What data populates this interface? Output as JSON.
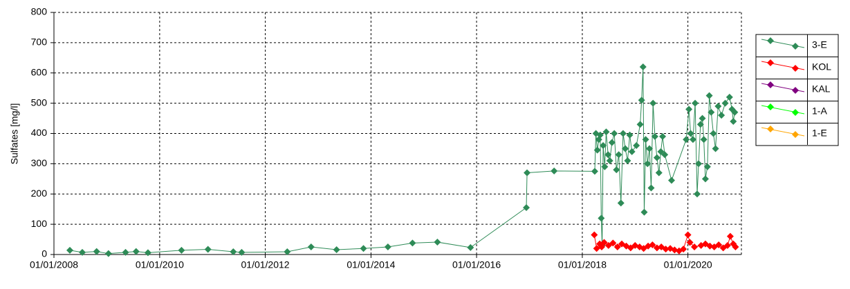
{
  "chart_data": {
    "type": "line",
    "ylabel": "Sulfates [mg/l]",
    "xlim": [
      "2008-01-01",
      "2021-01-05"
    ],
    "xticks": [
      {
        "value": "2008-01-01",
        "label": "01/01/2008"
      },
      {
        "value": "2010-01-01",
        "label": "01/01/2010"
      },
      {
        "value": "2012-01-01",
        "label": "01/01/2012"
      },
      {
        "value": "2014-01-01",
        "label": "01/01/2014"
      },
      {
        "value": "2016-01-01",
        "label": "01/01/2016"
      },
      {
        "value": "2018-01-01",
        "label": "01/01/2018"
      },
      {
        "value": "2020-01-01",
        "label": "01/01/2020"
      }
    ],
    "ylim": [
      0,
      800
    ],
    "yticks": [
      0,
      100,
      200,
      300,
      400,
      500,
      600,
      700,
      800
    ],
    "grid": true,
    "legend": "right",
    "series": [
      {
        "name": "3-E",
        "color": "#2e8b57",
        "x": [
          "2008-04-20",
          "2008-07-15",
          "2008-10-22",
          "2009-01-12",
          "2009-05-10",
          "2009-07-22",
          "2009-10-12",
          "2010-06-01",
          "2010-12-01",
          "2011-05-25",
          "2011-07-22",
          "2012-06-01",
          "2012-11-13",
          "2013-05-08",
          "2013-11-10",
          "2014-04-28",
          "2014-10-15",
          "2015-04-05",
          "2015-11-20",
          "2016-12-10",
          "2016-12-15",
          "2017-06-20",
          "2018-03-28",
          "2018-04-05",
          "2018-04-15",
          "2018-04-25",
          "2018-05-05",
          "2018-05-12",
          "2018-05-18",
          "2018-05-25",
          "2018-06-05",
          "2018-06-15",
          "2018-06-28",
          "2018-07-10",
          "2018-07-25",
          "2018-08-10",
          "2018-08-25",
          "2018-09-10",
          "2018-09-25",
          "2018-10-10",
          "2018-10-25",
          "2018-11-10",
          "2018-11-25",
          "2018-12-10",
          "2019-01-10",
          "2019-02-05",
          "2019-02-15",
          "2019-02-25",
          "2019-03-05",
          "2019-03-15",
          "2019-03-28",
          "2019-04-10",
          "2019-04-22",
          "2019-05-05",
          "2019-05-18",
          "2019-06-01",
          "2019-06-15",
          "2019-06-28",
          "2019-07-10",
          "2019-07-25",
          "2019-09-10",
          "2019-12-20",
          "2020-01-08",
          "2020-01-20",
          "2020-02-05",
          "2020-02-20",
          "2020-03-05",
          "2020-03-15",
          "2020-03-28",
          "2020-04-10",
          "2020-04-20",
          "2020-05-01",
          "2020-05-15",
          "2020-05-28",
          "2020-06-10",
          "2020-06-25",
          "2020-07-10",
          "2020-07-28",
          "2020-08-20",
          "2020-09-15",
          "2020-10-15",
          "2020-11-01",
          "2020-11-10",
          "2020-11-20"
        ],
        "values": [
          14,
          7,
          10,
          3,
          7,
          10,
          6,
          14,
          17,
          9,
          7,
          9,
          25,
          16,
          20,
          25,
          38,
          41,
          23,
          155,
          270,
          276,
          275,
          400,
          345,
          380,
          395,
          120,
          30,
          360,
          290,
          405,
          330,
          310,
          370,
          400,
          280,
          330,
          170,
          400,
          350,
          310,
          395,
          340,
          360,
          430,
          510,
          620,
          140,
          380,
          300,
          350,
          220,
          500,
          390,
          320,
          270,
          340,
          390,
          330,
          245,
          380,
          480,
          400,
          380,
          500,
          200,
          300,
          430,
          450,
          380,
          250,
          290,
          525,
          470,
          400,
          350,
          490,
          460,
          500,
          520,
          480,
          440,
          470
        ]
      },
      {
        "name": "KOL",
        "color": "#ff0000",
        "x": [
          "2018-03-25",
          "2018-04-10",
          "2018-05-01",
          "2018-05-15",
          "2018-06-01",
          "2018-07-01",
          "2018-08-01",
          "2018-09-01",
          "2018-10-01",
          "2018-11-01",
          "2018-12-01",
          "2019-01-01",
          "2019-02-01",
          "2019-03-01",
          "2019-04-01",
          "2019-05-01",
          "2019-06-01",
          "2019-07-01",
          "2019-08-01",
          "2019-09-01",
          "2019-10-01",
          "2019-11-01",
          "2019-12-01",
          "2020-01-01",
          "2020-01-15",
          "2020-02-15",
          "2020-04-01",
          "2020-05-01",
          "2020-06-01",
          "2020-07-01",
          "2020-08-01",
          "2020-09-01",
          "2020-10-01",
          "2020-10-20",
          "2020-11-10",
          "2020-11-25"
        ],
        "values": [
          65,
          20,
          35,
          25,
          40,
          30,
          38,
          25,
          35,
          28,
          22,
          30,
          25,
          20,
          28,
          32,
          22,
          25,
          18,
          20,
          15,
          12,
          18,
          65,
          40,
          25,
          30,
          35,
          28,
          25,
          32,
          22,
          30,
          60,
          35,
          25
        ]
      },
      {
        "name": "KAL",
        "color": "#800080",
        "x": [],
        "values": []
      },
      {
        "name": "1-A",
        "color": "#00ff00",
        "x": [],
        "values": []
      },
      {
        "name": "1-E",
        "color": "#ffa500",
        "x": [],
        "values": []
      }
    ]
  }
}
